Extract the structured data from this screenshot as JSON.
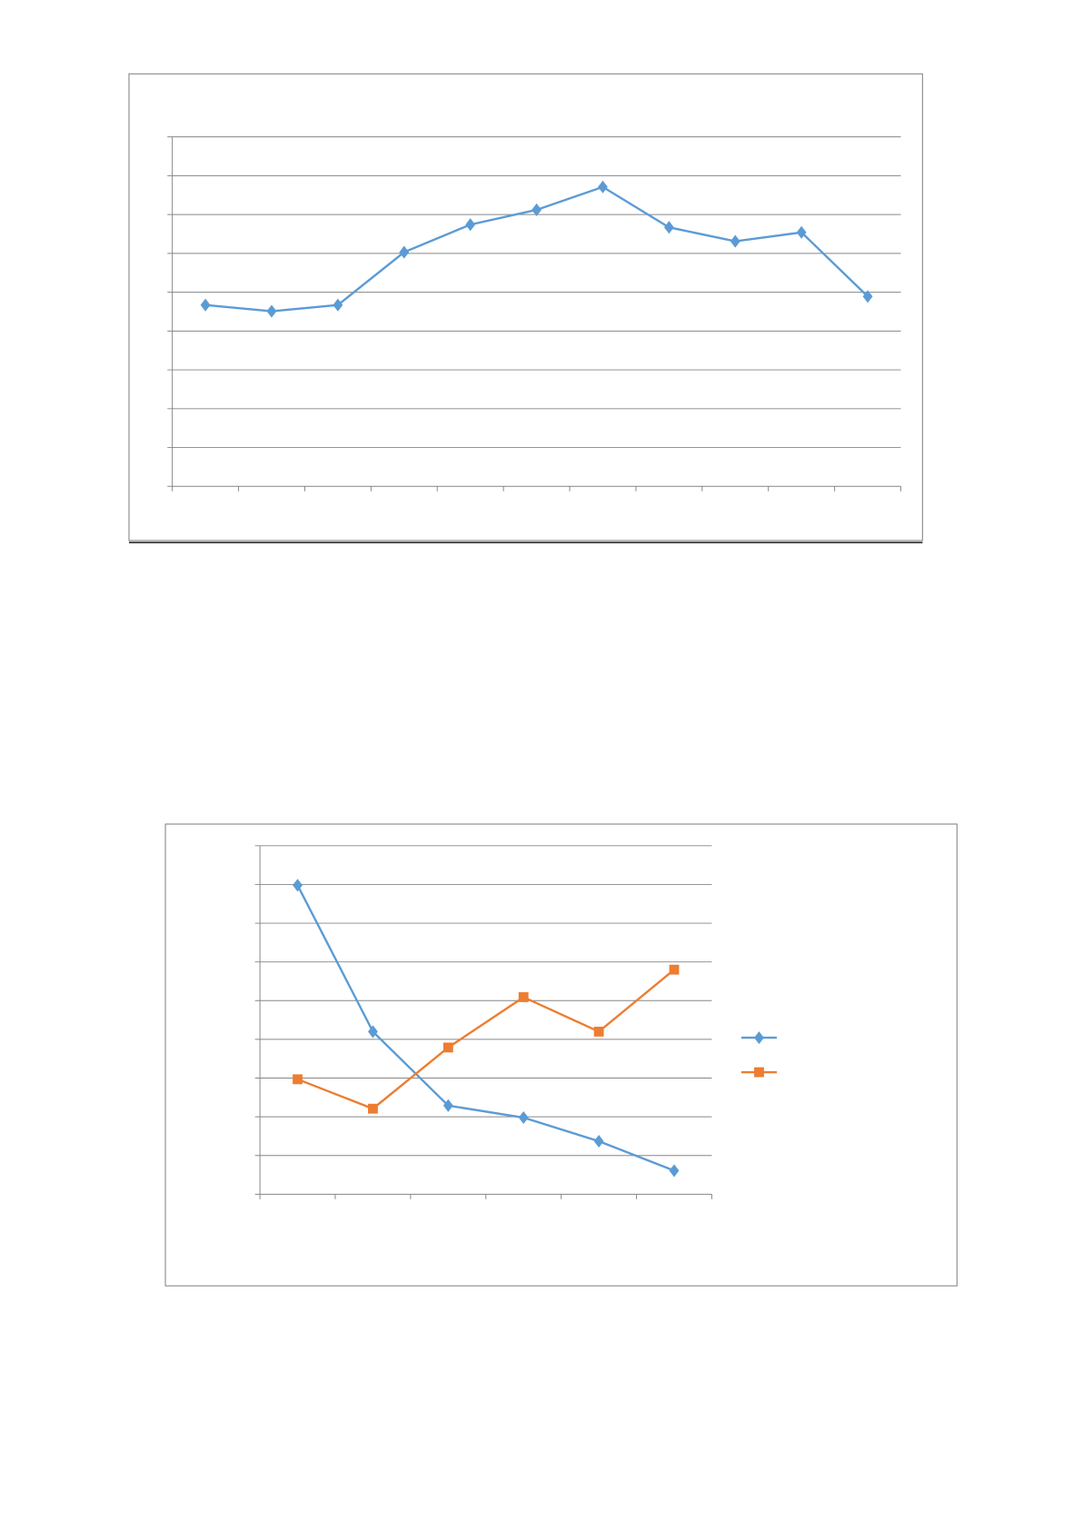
{
  "colors": {
    "axis": "#868686",
    "frame": "#868686",
    "series_blue": "#5B9BD5",
    "series_orange": "#ED7D31",
    "rule": "#000000"
  },
  "chart_data": [
    {
      "type": "line",
      "title": "",
      "xlabel": "",
      "ylabel": "",
      "category_count": 11,
      "ylim": [
        0,
        9
      ],
      "grid": true,
      "legend": "none",
      "series": [
        {
          "marker": "diamond",
          "color": "#5B9BD5",
          "values": [
            4.67,
            4.51,
            4.67,
            6.03,
            6.74,
            7.12,
            7.71,
            6.67,
            6.31,
            6.54,
            4.89
          ]
        }
      ]
    },
    {
      "type": "line",
      "title": "",
      "xlabel": "",
      "ylabel": "",
      "category_count": 6,
      "ylim": [
        0,
        9
      ],
      "grid": true,
      "legend": "right",
      "series": [
        {
          "marker": "diamond",
          "color": "#5B9BD5",
          "values": [
            7.98,
            4.2,
            2.29,
            1.98,
            1.37,
            0.61
          ]
        },
        {
          "marker": "square",
          "color": "#ED7D31",
          "values": [
            2.97,
            2.21,
            3.79,
            5.09,
            4.2,
            5.8
          ]
        }
      ]
    }
  ]
}
